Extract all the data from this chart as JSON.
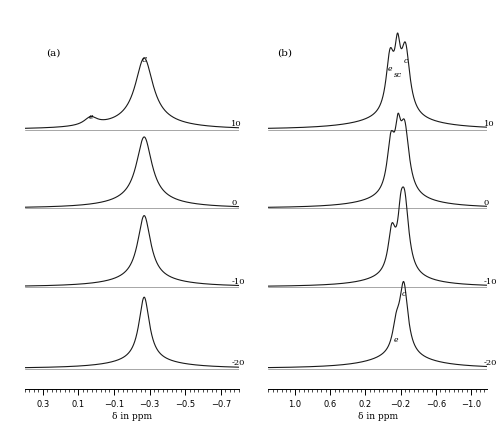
{
  "panel_a": {
    "label": "(a)",
    "x_ticks": [
      0.3,
      0.1,
      -0.1,
      -0.3,
      -0.5,
      -0.7
    ],
    "xlabel": "δ in ppm",
    "temperatures": [
      "10",
      "0",
      "-10",
      "-20"
    ]
  },
  "panel_b": {
    "label": "(b)",
    "x_ticks": [
      1.0,
      0.6,
      0.2,
      -0.2,
      -0.6,
      -1.0
    ],
    "xlabel": "δ in ppm",
    "temperatures": [
      "10",
      "0",
      "-10",
      "-20"
    ]
  },
  "line_color": "#1a1a1a",
  "tick_font_size": 6,
  "label_font_size": 6.5,
  "temp_font_size": 6,
  "annot_font_size": 5.5
}
